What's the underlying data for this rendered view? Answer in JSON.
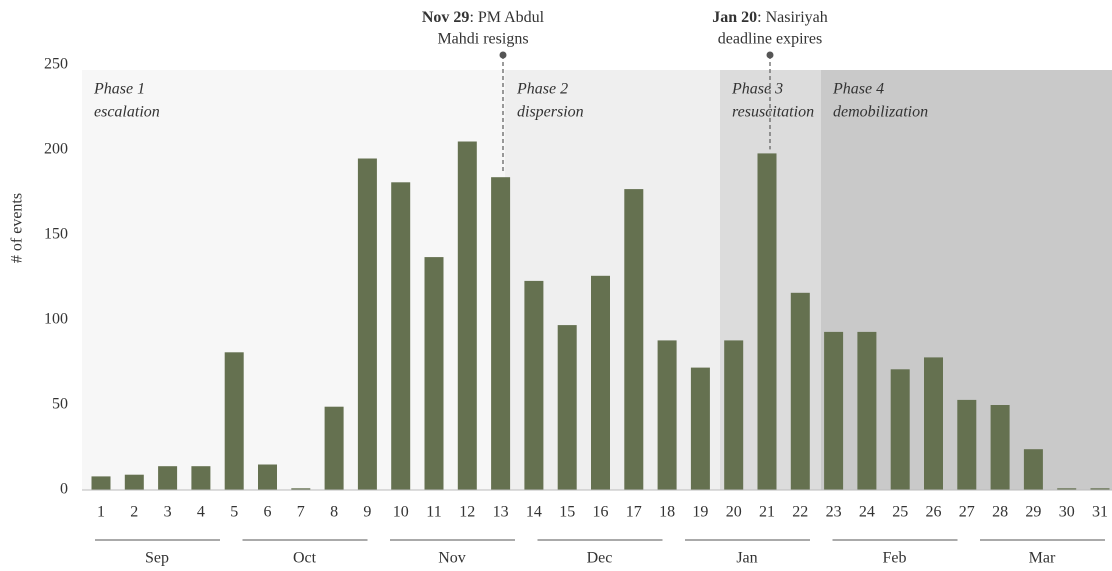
{
  "chart_data": {
    "type": "bar",
    "ylabel": "# of events",
    "categories": [
      "1",
      "2",
      "3",
      "4",
      "5",
      "6",
      "7",
      "8",
      "9",
      "10",
      "11",
      "12",
      "13",
      "14",
      "15",
      "16",
      "17",
      "18",
      "19",
      "20",
      "21",
      "22",
      "23",
      "24",
      "25",
      "26",
      "27",
      "28",
      "29",
      "30",
      "31"
    ],
    "values": [
      8,
      9,
      14,
      14,
      81,
      15,
      1,
      49,
      195,
      181,
      137,
      205,
      184,
      123,
      97,
      126,
      177,
      88,
      72,
      88,
      198,
      116,
      93,
      93,
      71,
      78,
      53,
      50,
      24,
      1,
      1
    ],
    "color": "#657150",
    "ylim": [
      0,
      250
    ],
    "yticks": [
      0,
      50,
      100,
      150,
      200,
      250
    ],
    "months": [
      "Sep",
      "Oct",
      "Nov",
      "Dec",
      "Jan",
      "Feb",
      "Mar"
    ],
    "phases": [
      {
        "title": "Phase 1",
        "name": "escalation",
        "color": "#f7f7f7"
      },
      {
        "title": "Phase 2",
        "name": "dispersion",
        "color": "#efefef"
      },
      {
        "title": "Phase 3",
        "name": "resuscitation",
        "color": "#dcdcdc"
      },
      {
        "title": "Phase 4",
        "name": "demobilization",
        "color": "#c9c9c9"
      }
    ],
    "annotations": [
      {
        "bold": "Nov 29",
        "lines": [
          ": PM Abdul",
          "Mahdi resigns"
        ]
      },
      {
        "bold": "Jan 20",
        "lines": [
          ": Nasiriyah",
          "deadline expires"
        ]
      }
    ]
  }
}
